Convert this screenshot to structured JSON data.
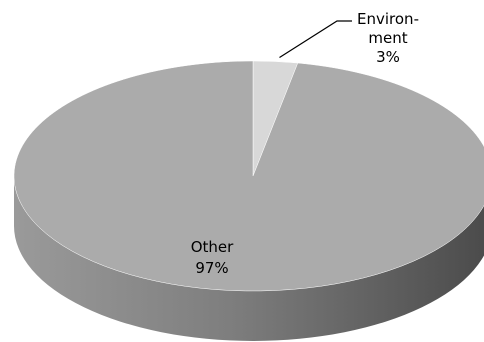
{
  "chart_data": {
    "type": "pie",
    "style": "3d-tilted",
    "categories": [
      "Environment",
      "Other"
    ],
    "values": [
      3,
      97
    ],
    "unit": "%",
    "title": "",
    "legend": "none",
    "data_labels": [
      {
        "category_lines": [
          "Environ-",
          "ment"
        ],
        "value_text": "3%"
      },
      {
        "category_lines": [
          "Other"
        ],
        "value_text": "97%"
      }
    ],
    "colors": {
      "Environment": "#d8d8d8",
      "Other": "#ababab",
      "side_light": "#9a9a9a",
      "side_dark": "#4a4a4a",
      "leader_line": "#000000"
    }
  }
}
